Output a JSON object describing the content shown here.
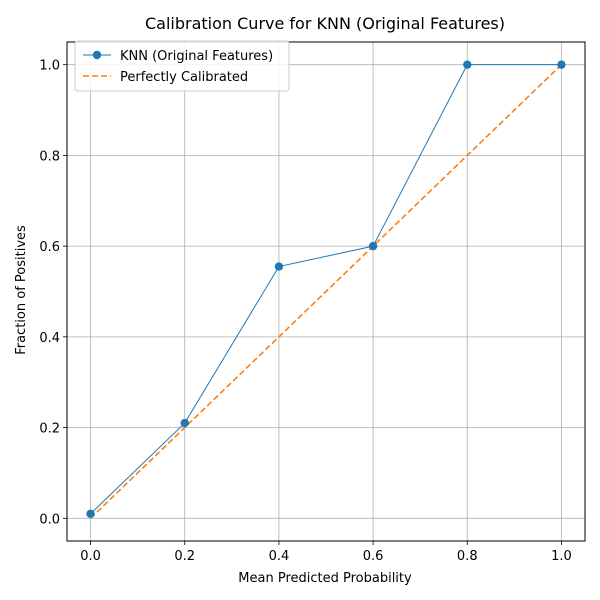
{
  "chart_data": {
    "type": "line",
    "title": "Calibration Curve for KNN (Original Features)",
    "xlabel": "Mean Predicted Probability",
    "ylabel": "Fraction of Positives",
    "xlim": [
      -0.05,
      1.05
    ],
    "ylim": [
      -0.05,
      1.05
    ],
    "xticks": [
      0.0,
      0.2,
      0.4,
      0.6,
      0.8,
      1.0
    ],
    "yticks": [
      0.0,
      0.2,
      0.4,
      0.6,
      0.8,
      1.0
    ],
    "xtick_labels": [
      "0.0",
      "0.2",
      "0.4",
      "0.6",
      "0.8",
      "1.0"
    ],
    "ytick_labels": [
      "0.0",
      "0.2",
      "0.4",
      "0.6",
      "0.8",
      "1.0"
    ],
    "grid": true,
    "legend_position": "top-left",
    "series": [
      {
        "name": "KNN (Original Features)",
        "style": "solid-with-circle-markers",
        "color": "#1f77b4",
        "x": [
          0.0,
          0.2,
          0.4,
          0.6,
          0.8,
          1.0
        ],
        "y": [
          0.01,
          0.21,
          0.555,
          0.6,
          1.0,
          1.0
        ]
      },
      {
        "name": "Perfectly Calibrated",
        "style": "dashed",
        "color": "#ff7f0e",
        "x": [
          0.0,
          1.0
        ],
        "y": [
          0.0,
          1.0
        ]
      }
    ]
  }
}
